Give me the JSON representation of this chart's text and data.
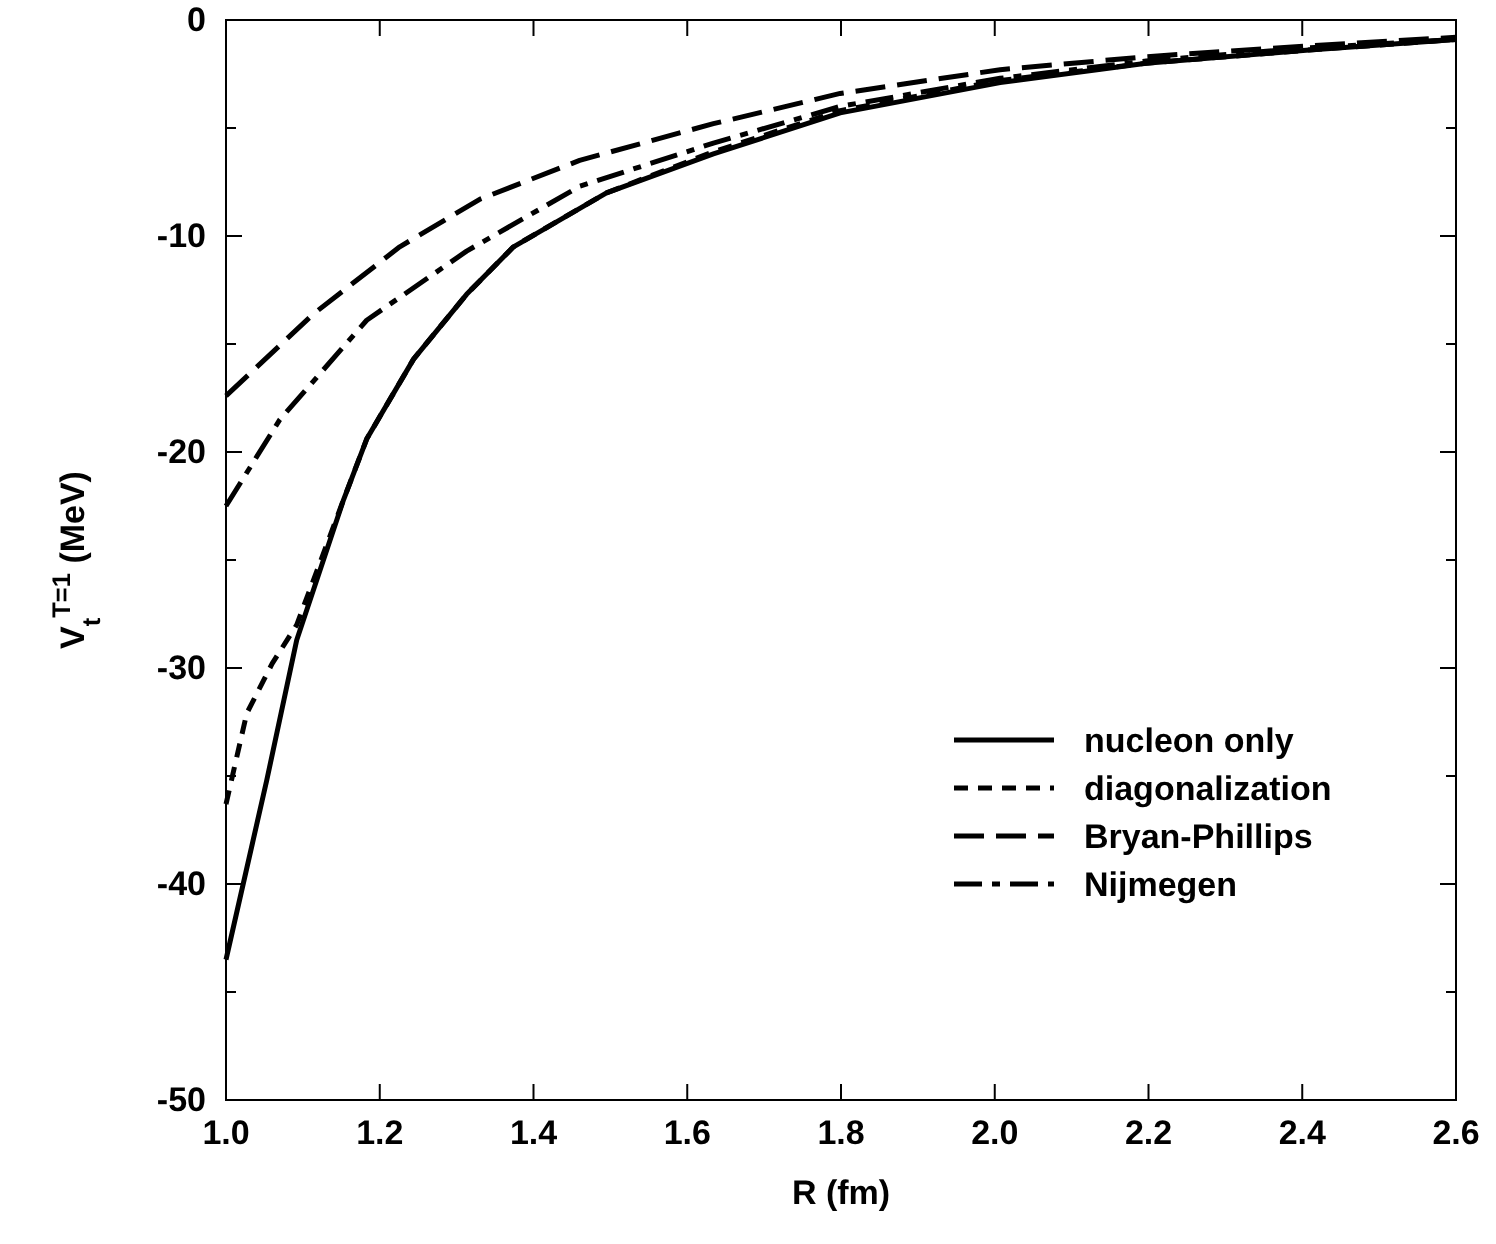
{
  "chart_data": {
    "type": "line",
    "xlabel": "R (fm)",
    "ylabel": "V$_{t}$$^{T=1}$ (MeV)",
    "xlim": [
      1.0,
      2.6
    ],
    "ylim": [
      -50,
      0
    ],
    "xticks": [
      {
        "value": 1.0,
        "label": "1.0"
      },
      {
        "value": 1.2,
        "label": "1.2"
      },
      {
        "value": 1.4,
        "label": "1.4"
      },
      {
        "value": 1.6,
        "label": "1.6"
      },
      {
        "value": 1.8,
        "label": "1.8"
      },
      {
        "value": 2.0,
        "label": "2.0"
      },
      {
        "value": 2.2,
        "label": "2.2"
      },
      {
        "value": 2.4,
        "label": "2.4"
      },
      {
        "value": 2.6,
        "label": "2.6"
      }
    ],
    "yticks": [
      -50,
      {
        "value": -45,
        "label": null
      },
      -40,
      {
        "value": -35,
        "label": null
      },
      -30,
      {
        "value": -25,
        "label": null
      },
      -20,
      {
        "value": -15,
        "label": null
      },
      -10,
      {
        "value": -5,
        "label": null
      },
      0
    ],
    "grid": false,
    "legend": "bottom right",
    "marker": "none",
    "series": [
      {
        "name": "nucleon only",
        "color": "#000000",
        "line_style": "solid",
        "x": [
          1.0,
          1.053,
          1.092,
          1.153,
          1.183,
          1.244,
          1.313,
          1.374,
          1.495,
          1.634,
          1.799,
          2.007,
          2.197,
          2.405,
          2.6
        ],
        "values": [
          -43.5,
          -35.2,
          -28.7,
          -22.2,
          -19.4,
          -15.7,
          -12.7,
          -10.5,
          -8.0,
          -6.2,
          -4.3,
          -2.9,
          -2.0,
          -1.4,
          -0.9
        ]
      },
      {
        "name": "diagonalization",
        "color": "#000000",
        "line_style": "dashed",
        "x": [
          1.0,
          1.027,
          1.06,
          1.092,
          1.153,
          1.183,
          1.244,
          1.313,
          1.374,
          1.495,
          1.634,
          1.799,
          2.007,
          2.197,
          2.405,
          2.6
        ],
        "values": [
          -36.3,
          -32.1,
          -29.8,
          -28.0,
          -22.2,
          -19.4,
          -15.7,
          -12.7,
          -10.5,
          -8.0,
          -6.1,
          -4.2,
          -2.8,
          -2.0,
          -1.4,
          -0.9
        ]
      },
      {
        "name": "Bryan-Phillips",
        "color": "#000000",
        "line_style": "longdash",
        "x": [
          1.0,
          1.114,
          1.226,
          1.33,
          1.46,
          1.634,
          1.799,
          2.007,
          2.197,
          2.405,
          2.6
        ],
        "values": [
          -17.4,
          -13.6,
          -10.5,
          -8.3,
          -6.5,
          -4.8,
          -3.4,
          -2.3,
          -1.7,
          -1.2,
          -0.8
        ]
      },
      {
        "name": "Nijmegen",
        "color": "#000000",
        "line_style": "dashdot",
        "x": [
          1.0,
          1.07,
          1.183,
          1.313,
          1.46,
          1.634,
          1.799,
          2.007,
          2.197,
          2.405,
          2.6
        ],
        "values": [
          -22.5,
          -18.5,
          -13.9,
          -10.7,
          -7.7,
          -5.7,
          -4.0,
          -2.7,
          -1.9,
          -1.3,
          -0.9
        ]
      }
    ]
  }
}
